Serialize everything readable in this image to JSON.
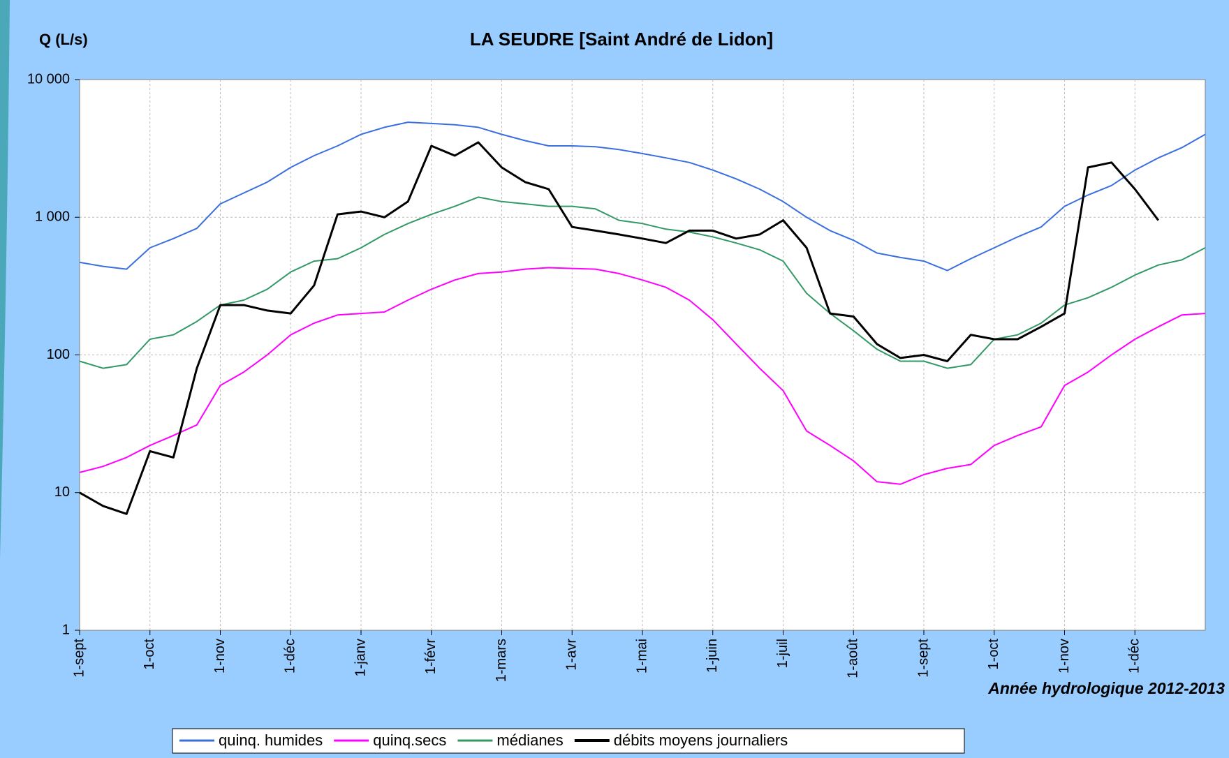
{
  "chart_data": {
    "type": "line",
    "title": "LA SEUDRE [Saint André de Lidon]",
    "y_label": "Q (L/s)",
    "annotation": "Année hydrologique 2012-2013",
    "yscale": "log",
    "grid": true,
    "legend": "bottom",
    "ylim": [
      1,
      10000
    ],
    "yticks": [
      1,
      10,
      100,
      {
        "value": 1000,
        "label": "1 000"
      },
      {
        "value": 10000,
        "label": "10 000"
      }
    ],
    "categories": [
      "1-sept",
      null,
      null,
      "1-oct",
      null,
      null,
      "1-nov",
      null,
      null,
      "1-déc",
      null,
      null,
      "1-janv",
      null,
      null,
      "1-févr",
      null,
      null,
      "1-mars",
      null,
      null,
      "1-avr",
      null,
      null,
      "1-mai",
      null,
      null,
      "1-juin",
      null,
      null,
      "1-juil",
      null,
      null,
      "1-août",
      null,
      null,
      "1-sept",
      null,
      null,
      "1-oct",
      null,
      null,
      "1-nov",
      null,
      null,
      "1-déc",
      null,
      null,
      null
    ],
    "series": [
      {
        "name": "quinq. humides",
        "color": "#3a6fe0",
        "width": 2,
        "values": [
          470,
          440,
          420,
          600,
          700,
          830,
          1250,
          1500,
          1800,
          2300,
          2800,
          3300,
          4000,
          4500,
          4900,
          4800,
          4700,
          4500,
          4000,
          3600,
          3300,
          3300,
          3250,
          3100,
          2900,
          2700,
          2500,
          2200,
          1900,
          1600,
          1300,
          1000,
          800,
          680,
          550,
          510,
          480,
          410,
          500,
          600,
          720,
          850,
          1200,
          1450,
          1700,
          2200,
          2700,
          3200,
          4000
        ]
      },
      {
        "name": "quinq.secs",
        "color": "#ff00ff",
        "width": 2,
        "values": [
          14,
          15.5,
          18,
          22,
          26,
          31,
          60,
          75,
          100,
          140,
          170,
          195,
          200,
          205,
          250,
          300,
          350,
          390,
          400,
          420,
          430,
          425,
          420,
          390,
          350,
          310,
          250,
          180,
          120,
          80,
          55,
          28,
          22,
          17,
          12,
          11.5,
          13.5,
          15,
          16,
          22,
          26,
          30,
          60,
          75,
          100,
          130,
          160,
          195,
          200
        ]
      },
      {
        "name": "médianes",
        "color": "#339966",
        "width": 2,
        "values": [
          90,
          80,
          85,
          130,
          140,
          175,
          230,
          250,
          300,
          400,
          480,
          500,
          600,
          750,
          900,
          1050,
          1200,
          1400,
          1300,
          1250,
          1200,
          1200,
          1150,
          950,
          900,
          820,
          780,
          720,
          650,
          580,
          480,
          280,
          200,
          150,
          110,
          90,
          90,
          80,
          85,
          130,
          140,
          170,
          230,
          260,
          310,
          380,
          450,
          490,
          600
        ]
      },
      {
        "name": "débits moyens journaliers",
        "color": "#000000",
        "width": 3,
        "values": [
          10,
          8,
          7,
          20,
          18,
          80,
          230,
          230,
          210,
          200,
          320,
          1050,
          1100,
          1000,
          1300,
          3300,
          2800,
          3500,
          2300,
          1800,
          1600,
          850,
          800,
          750,
          700,
          650,
          800,
          800,
          700,
          750,
          950,
          600,
          200,
          190,
          120,
          95,
          100,
          90,
          140,
          130,
          130,
          160,
          200,
          2300,
          2500,
          1600,
          950,
          null,
          null
        ]
      }
    ]
  }
}
